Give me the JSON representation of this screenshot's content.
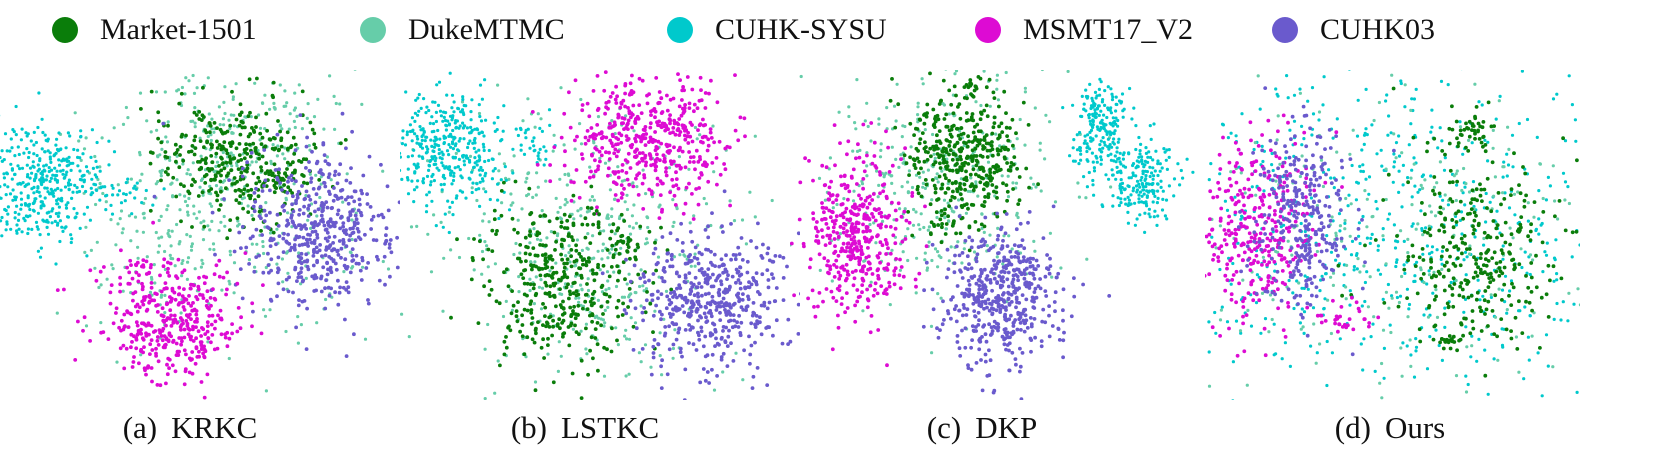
{
  "chart_data": {
    "type": "scatter",
    "legend": {
      "placement": "top",
      "entries": [
        {
          "name": "Market-1501",
          "color": "#0a7d0a"
        },
        {
          "name": "DukeMTMC",
          "color": "#66cda9"
        },
        {
          "name": "CUHK-SYSU",
          "color": "#00c9cc"
        },
        {
          "name": "MSMT17_V2",
          "color": "#dd0bd3"
        },
        {
          "name": "CUHK03",
          "color": "#6a5acd"
        }
      ]
    },
    "panels": [
      {
        "tag": "(a)",
        "title": "KRKC"
      },
      {
        "tag": "(b)",
        "title": "LSTKC"
      },
      {
        "tag": "(c)",
        "title": "DKP"
      },
      {
        "tag": "(d)",
        "title": "Ours"
      }
    ],
    "axes_visible": false,
    "grid": false
  }
}
